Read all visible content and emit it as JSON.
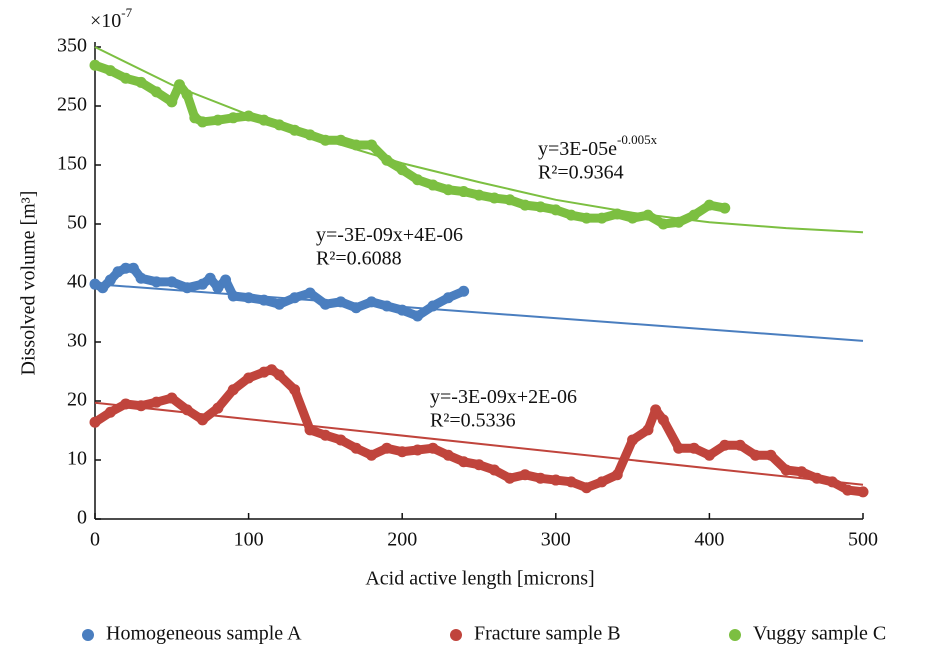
{
  "chart_data": {
    "type": "scatter",
    "xlabel": "Acid active length [microns]",
    "ylabel": "Dissolved volume [m³]",
    "y_multiplier": {
      "base": "×10",
      "exponent": "-7"
    },
    "xlim": [
      0,
      500
    ],
    "xticks": [
      0,
      100,
      200,
      300,
      400,
      500
    ],
    "ylim": [
      0,
      350
    ],
    "yticks": [
      0,
      10,
      20,
      30,
      40,
      50,
      150,
      250,
      350
    ],
    "series": [
      {
        "name": "Homogeneous sample A",
        "color": "#4a7ebf",
        "x": [
          0,
          5,
          10,
          15,
          20,
          25,
          30,
          40,
          50,
          60,
          70,
          75,
          80,
          85,
          90,
          100,
          110,
          120,
          130,
          140,
          150,
          160,
          170,
          180,
          190,
          200,
          210,
          220,
          230,
          240
        ],
        "values": [
          39.8,
          39.2,
          40.5,
          41.9,
          42.5,
          42.5,
          40.8,
          40.2,
          40.2,
          39.2,
          39.8,
          40.8,
          39.2,
          40.5,
          37.8,
          37.5,
          37.1,
          36.4,
          37.5,
          38.3,
          36.4,
          36.8,
          35.8,
          36.8,
          36.1,
          35.4,
          34.4,
          36.1,
          37.5,
          38.6
        ]
      },
      {
        "name": "Fracture sample B",
        "color": "#c0443c",
        "x": [
          0,
          10,
          20,
          30,
          40,
          50,
          60,
          70,
          80,
          90,
          100,
          110,
          115,
          120,
          130,
          140,
          150,
          160,
          170,
          180,
          190,
          200,
          210,
          220,
          230,
          240,
          250,
          260,
          270,
          280,
          290,
          300,
          310,
          320,
          330,
          340,
          350,
          360,
          365,
          370,
          380,
          390,
          400,
          410,
          420,
          430,
          440,
          450,
          460,
          470,
          480,
          490,
          500
        ],
        "values": [
          16.4,
          18.1,
          19.5,
          19.2,
          19.8,
          20.5,
          18.5,
          16.8,
          18.8,
          21.9,
          23.9,
          24.9,
          25.3,
          24.4,
          21.9,
          15.1,
          14.2,
          13.4,
          12.0,
          10.8,
          12.0,
          11.4,
          11.7,
          12.0,
          10.8,
          9.7,
          9.2,
          8.3,
          6.9,
          7.5,
          6.9,
          6.6,
          6.3,
          5.3,
          6.3,
          7.5,
          13.4,
          15.1,
          18.5,
          16.8,
          12.0,
          12.0,
          10.8,
          12.5,
          12.5,
          10.8,
          10.8,
          8.3,
          8.0,
          6.9,
          6.3,
          4.9,
          4.6
        ]
      },
      {
        "name": "Vuggy sample C",
        "color": "#7cbf41",
        "x": [
          0,
          10,
          20,
          30,
          40,
          50,
          55,
          60,
          65,
          70,
          80,
          90,
          100,
          110,
          120,
          130,
          140,
          150,
          160,
          170,
          180,
          190,
          200,
          210,
          220,
          230,
          240,
          250,
          260,
          270,
          280,
          290,
          300,
          310,
          320,
          330,
          340,
          350,
          360,
          370,
          380,
          390,
          400,
          410
        ],
        "values": [
          319,
          310,
          297,
          290,
          274,
          257,
          286,
          269,
          230,
          223,
          226,
          230,
          233,
          226,
          218,
          209,
          201,
          192,
          192,
          184,
          184,
          158,
          142,
          125,
          116,
          108,
          105,
          99,
          94,
          91,
          82,
          79,
          74,
          65,
          60,
          60,
          67,
          60,
          65,
          50,
          53,
          65,
          82,
          77
        ]
      }
    ],
    "trendlines": [
      {
        "color": "#4a7ebf",
        "x": [
          0,
          500
        ],
        "values": [
          39.8,
          30.2
        ]
      },
      {
        "color": "#c0443c",
        "x": [
          0,
          500
        ],
        "values": [
          19.7,
          5.8
        ]
      },
      {
        "color": "#7cbf41",
        "x": [
          0,
          50,
          100,
          150,
          200,
          250,
          300,
          350,
          400,
          450,
          500
        ],
        "values": [
          350,
          286,
          235,
          192,
          153,
          121,
          91,
          69,
          53,
          49.3,
          48.6
        ]
      }
    ],
    "annotations": [
      {
        "equation": {
          "base": "y=3E-05e",
          "exponent": "-0.005x"
        },
        "r2": "R²=0.9364"
      },
      {
        "equation": {
          "base": "y=-3E-09x+4E-06"
        },
        "r2": "R²=0.6088"
      },
      {
        "equation": {
          "base": "y=-3E-09x+2E-06"
        },
        "r2": "R²=0.5336"
      }
    ]
  }
}
